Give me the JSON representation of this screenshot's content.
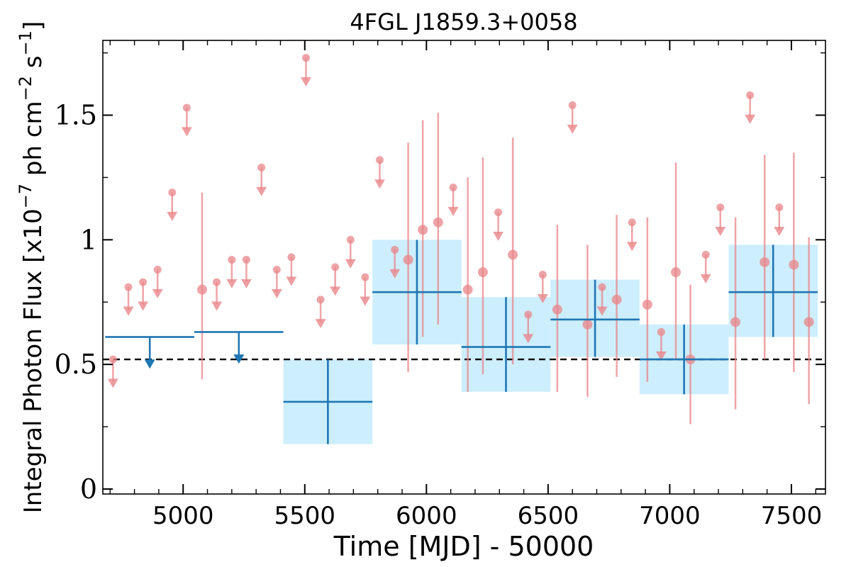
{
  "chart_data": {
    "type": "scatter",
    "title": "4FGL J1859.3+0058",
    "xlabel": "Time [MJD] - 50000",
    "ylabel": "Integral Photon Flux [x10",
    "ylabel_exp1": "−7",
    "ylabel_mid": " ph cm",
    "ylabel_exp2": "−2",
    "ylabel_mid2": " s",
    "ylabel_exp3": "−1",
    "ylabel_end": "]",
    "xlim": [
      4670,
      7640
    ],
    "ylim": [
      -0.02,
      1.8
    ],
    "xticks": [
      {
        "value": 5000,
        "label": "5000"
      },
      {
        "value": 5500,
        "label": "5500"
      },
      {
        "value": 6000,
        "label": "6000"
      },
      {
        "value": 6500,
        "label": "6500"
      },
      {
        "value": 7000,
        "label": "7000"
      },
      {
        "value": 7500,
        "label": "7500"
      }
    ],
    "yticks": [
      {
        "value": 0,
        "label": "0"
      },
      {
        "value": 0.5,
        "label": "0.5"
      },
      {
        "value": 1,
        "label": "1"
      },
      {
        "value": 1.5,
        "label": "1.5"
      }
    ],
    "x_minor_step": 100,
    "y_minor_step": 0.25,
    "reference_line": {
      "y": 0.52,
      "style": "dashed"
    },
    "colors": {
      "short_bin": "#e8868a",
      "long_bin": "#1f77b4",
      "long_bin_band": "#cdeefc",
      "reference": "#000000"
    },
    "short_bins": {
      "measurements": [
        {
          "x": 5078,
          "y": 0.8,
          "lo": 0.44,
          "hi": 1.19
        },
        {
          "x": 5925,
          "y": 0.92,
          "lo": 0.47,
          "hi": 1.39
        },
        {
          "x": 5985,
          "y": 1.04,
          "lo": 0.61,
          "hi": 1.48
        },
        {
          "x": 6048,
          "y": 1.07,
          "lo": 0.66,
          "hi": 1.51
        },
        {
          "x": 6170,
          "y": 0.8,
          "lo": 0.39,
          "hi": 1.25
        },
        {
          "x": 6232,
          "y": 0.87,
          "lo": 0.46,
          "hi": 1.33
        },
        {
          "x": 6355,
          "y": 0.94,
          "lo": 0.5,
          "hi": 1.41
        },
        {
          "x": 6538,
          "y": 0.72,
          "lo": 0.39,
          "hi": 1.06
        },
        {
          "x": 6662,
          "y": 0.66,
          "lo": 0.37,
          "hi": 0.98
        },
        {
          "x": 6782,
          "y": 0.76,
          "lo": 0.45,
          "hi": 1.1
        },
        {
          "x": 6908,
          "y": 0.74,
          "lo": 0.43,
          "hi": 1.09
        },
        {
          "x": 7025,
          "y": 0.87,
          "lo": 0.52,
          "hi": 1.31
        },
        {
          "x": 7085,
          "y": 0.52,
          "lo": 0.26,
          "hi": 0.82
        },
        {
          "x": 7270,
          "y": 0.67,
          "lo": 0.32,
          "hi": 1.09
        },
        {
          "x": 7390,
          "y": 0.91,
          "lo": 0.52,
          "hi": 1.34
        },
        {
          "x": 7510,
          "y": 0.9,
          "lo": 0.47,
          "hi": 1.35
        },
        {
          "x": 7572,
          "y": 0.67,
          "lo": 0.34,
          "hi": 1.01
        }
      ],
      "upper_limits": [
        {
          "x": 4712,
          "y": 0.52
        },
        {
          "x": 4775,
          "y": 0.81
        },
        {
          "x": 4835,
          "y": 0.83
        },
        {
          "x": 4895,
          "y": 0.88
        },
        {
          "x": 4955,
          "y": 1.19
        },
        {
          "x": 5015,
          "y": 1.53
        },
        {
          "x": 5138,
          "y": 0.83
        },
        {
          "x": 5200,
          "y": 0.92
        },
        {
          "x": 5260,
          "y": 0.92
        },
        {
          "x": 5322,
          "y": 1.29
        },
        {
          "x": 5385,
          "y": 0.88
        },
        {
          "x": 5445,
          "y": 0.93
        },
        {
          "x": 5505,
          "y": 1.73
        },
        {
          "x": 5565,
          "y": 0.76
        },
        {
          "x": 5625,
          "y": 0.89
        },
        {
          "x": 5688,
          "y": 1.0
        },
        {
          "x": 5748,
          "y": 0.85
        },
        {
          "x": 5808,
          "y": 1.32
        },
        {
          "x": 5870,
          "y": 0.96
        },
        {
          "x": 6110,
          "y": 1.21
        },
        {
          "x": 6295,
          "y": 1.11
        },
        {
          "x": 6418,
          "y": 0.7
        },
        {
          "x": 6478,
          "y": 0.86
        },
        {
          "x": 6600,
          "y": 1.54
        },
        {
          "x": 6722,
          "y": 0.81
        },
        {
          "x": 6845,
          "y": 1.07
        },
        {
          "x": 6965,
          "y": 0.63
        },
        {
          "x": 7148,
          "y": 0.94
        },
        {
          "x": 7208,
          "y": 1.13
        },
        {
          "x": 7330,
          "y": 1.58
        },
        {
          "x": 7450,
          "y": 1.13
        }
      ]
    },
    "long_bins": {
      "measurements": [
        {
          "x0": 5412,
          "x1": 5778,
          "xc": 5595,
          "y": 0.35,
          "lo": 0.18,
          "hi": 0.52
        },
        {
          "x0": 5778,
          "x1": 6144,
          "xc": 5961,
          "y": 0.79,
          "lo": 0.58,
          "hi": 1.0
        },
        {
          "x0": 6144,
          "x1": 6510,
          "xc": 6327,
          "y": 0.57,
          "lo": 0.39,
          "hi": 0.77
        },
        {
          "x0": 6510,
          "x1": 6876,
          "xc": 6693,
          "y": 0.68,
          "lo": 0.53,
          "hi": 0.84
        },
        {
          "x0": 6876,
          "x1": 7242,
          "xc": 7059,
          "y": 0.52,
          "lo": 0.38,
          "hi": 0.66
        },
        {
          "x0": 7242,
          "x1": 7608,
          "xc": 7425,
          "y": 0.79,
          "lo": 0.61,
          "hi": 0.98
        }
      ],
      "upper_limits": [
        {
          "x0": 4680,
          "x1": 5046,
          "xc": 4863,
          "y": 0.61
        },
        {
          "x0": 5046,
          "x1": 5412,
          "xc": 5229,
          "y": 0.63
        }
      ]
    }
  }
}
